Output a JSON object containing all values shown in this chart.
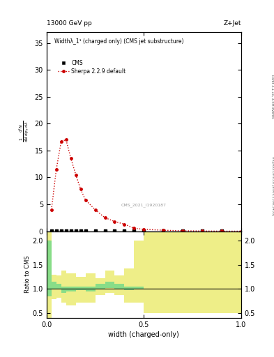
{
  "title_top": "13000 GeV pp",
  "title_right": "Z+Jet",
  "plot_title": "Widthλ_1¹ (charged only) (CMS jet substructure)",
  "xlabel": "width (charged-only)",
  "ylabel_main_lines": [
    "mathrm d²N",
    "mathrm d p_T mathrm d lambda"
  ],
  "ylabel_ratio": "Ratio to CMS",
  "right_label_top": "Rivet 3.1.10, 3.4M events",
  "right_label_bottom": "mcplots.cern.ch [arXiv:1306.3436]",
  "cms_id": "CMS_2021_I1920187",
  "legend_cms": "CMS",
  "legend_sherpa": "Sherpa 2.2.9 default",
  "main_ylim": [
    0,
    37
  ],
  "main_yticks": [
    0,
    5,
    10,
    15,
    20,
    25,
    30,
    35
  ],
  "ratio_ylim": [
    0.4,
    2.2
  ],
  "ratio_yticks": [
    0.5,
    1.0,
    1.5,
    2.0
  ],
  "xlim": [
    0,
    1
  ],
  "xticks": [
    0,
    0.5,
    1.0
  ],
  "sherpa_x": [
    0.025,
    0.05,
    0.075,
    0.1,
    0.125,
    0.15,
    0.175,
    0.2,
    0.25,
    0.3,
    0.35,
    0.4,
    0.45,
    0.5,
    0.6,
    0.7,
    0.8,
    0.9,
    1.0
  ],
  "sherpa_y": [
    4.0,
    11.5,
    16.7,
    17.0,
    13.5,
    10.5,
    7.8,
    5.8,
    4.0,
    2.5,
    1.8,
    1.3,
    0.55,
    0.35,
    0.18,
    0.08,
    0.04,
    0.01,
    0.005
  ],
  "cms_x": [
    0.025,
    0.05,
    0.075,
    0.1,
    0.125,
    0.15,
    0.175,
    0.2,
    0.25,
    0.3,
    0.35,
    0.4,
    0.45,
    0.5,
    0.6,
    0.7,
    0.8,
    0.9
  ],
  "cms_y": [
    0.05,
    0.05,
    0.05,
    0.05,
    0.05,
    0.05,
    0.05,
    0.05,
    0.05,
    0.05,
    0.05,
    0.05,
    0.05,
    0.05,
    0.05,
    0.05,
    0.05,
    0.05
  ],
  "sherpa_color": "#cc0000",
  "cms_color": "#000000",
  "ratio_green_color": "#88dd88",
  "ratio_yellow_color": "#eeee88",
  "ratio_bins_edges": [
    0.0,
    0.025,
    0.05,
    0.075,
    0.1,
    0.15,
    0.2,
    0.25,
    0.3,
    0.35,
    0.4,
    0.45,
    0.5,
    1.0
  ],
  "ratio_green_lo": [
    0.85,
    1.0,
    1.0,
    0.92,
    0.95,
    0.97,
    0.95,
    1.0,
    1.02,
    1.0,
    0.97,
    1.0,
    1.5
  ],
  "ratio_green_hi": [
    2.0,
    1.15,
    1.1,
    1.05,
    1.05,
    1.05,
    1.05,
    1.1,
    1.15,
    1.1,
    1.05,
    1.05,
    1.5
  ],
  "ratio_yellow_lo": [
    0.4,
    0.78,
    0.82,
    0.72,
    0.65,
    0.72,
    0.72,
    0.88,
    0.92,
    0.88,
    0.72,
    0.72,
    0.5
  ],
  "ratio_yellow_hi": [
    2.2,
    1.3,
    1.28,
    1.38,
    1.32,
    1.25,
    1.32,
    1.22,
    1.38,
    1.28,
    1.42,
    2.0,
    2.2
  ]
}
